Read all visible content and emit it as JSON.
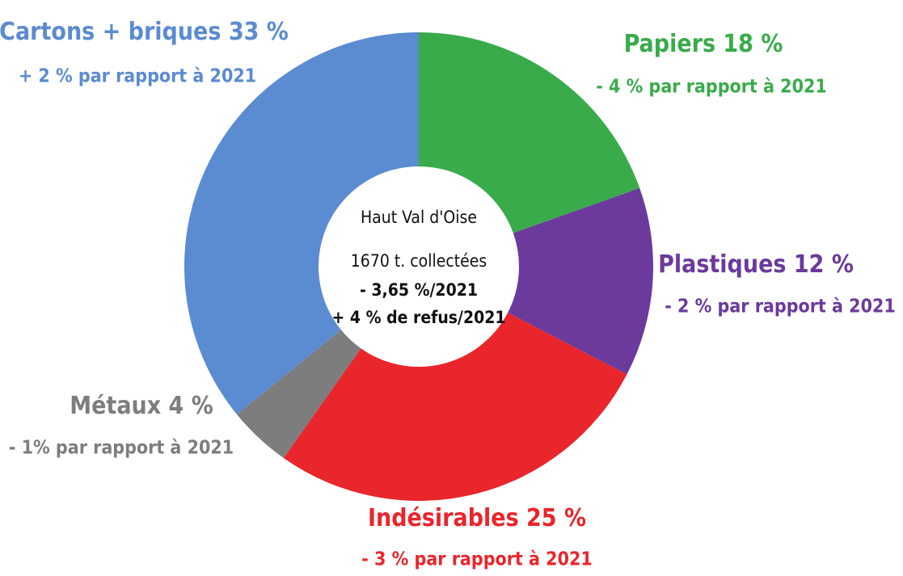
{
  "chart_data": {
    "type": "donut",
    "categories": [
      "Papiers",
      "Plastiques",
      "Indésirables",
      "Métaux",
      "Cartons + briques"
    ],
    "values": [
      18,
      12,
      25,
      4,
      33
    ],
    "value_labels": [
      "18 %",
      "12 %",
      "25 %",
      "4 %",
      "33 %"
    ],
    "notes": [
      "- 4 % par rapport à 2021",
      "- 2 % par rapport à 2021",
      "- 3 % par rapport à 2021",
      "- 1% par rapport à 2021",
      "+ 2 % par rapport à 2021"
    ],
    "colors": [
      "#3aab4b",
      "#6b3a9c",
      "#e8262b",
      "#7d7d7d",
      "#5b8bd1"
    ],
    "center_text": [
      "Haut Val d'Oise",
      "1670 t. collectées",
      "- 3,65 %/2021",
      "+ 4 % de refus/2021"
    ]
  }
}
